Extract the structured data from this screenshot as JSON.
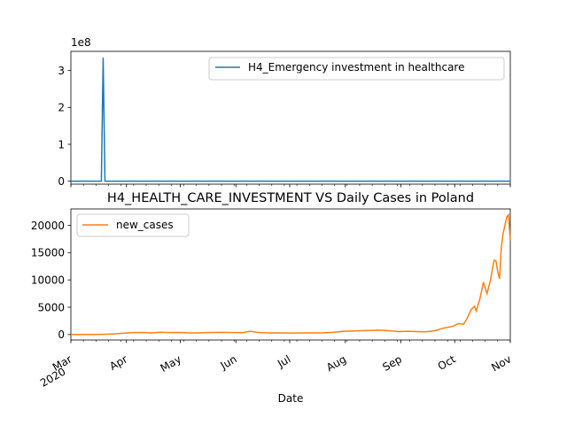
{
  "chart_data": [
    {
      "type": "line",
      "title": "",
      "xlabel": "",
      "ylabel": "",
      "ylim": [
        -8000000,
        352000000
      ],
      "y_multiplier_label": "1e8",
      "y_ticks": [
        0,
        100000000,
        200000000,
        300000000
      ],
      "y_tick_labels": [
        "0",
        "1",
        "2",
        "3"
      ],
      "legend_position": "upper right",
      "series": [
        {
          "name": "H4_Emergency investment in healthcare",
          "color": "#1f77b4",
          "points": [
            [
              "2020-03-01",
              0
            ],
            [
              "2020-03-18",
              0
            ],
            [
              "2020-03-19",
              335000000
            ],
            [
              "2020-03-20",
              0
            ],
            [
              "2020-11-01",
              0
            ]
          ]
        }
      ]
    },
    {
      "type": "line",
      "title": "H4_HEALTH_CARE_INVESTMENT VS Daily Cases in Poland",
      "xlabel": "Date",
      "ylabel": "",
      "xlim": [
        "2020-03-01",
        "2020-11-01"
      ],
      "ylim": [
        -1000,
        23000
      ],
      "y_ticks": [
        0,
        5000,
        10000,
        15000,
        20000
      ],
      "y_tick_labels": [
        "0",
        "5000",
        "10000",
        "15000",
        "20000"
      ],
      "x_ticks": [
        "2020-03-01",
        "2020-04-01",
        "2020-05-01",
        "2020-06-01",
        "2020-07-01",
        "2020-08-01",
        "2020-09-01",
        "2020-10-01",
        "2020-11-01"
      ],
      "x_tick_labels": [
        "Mar\n2020",
        "Apr",
        "May",
        "Jun",
        "Jul",
        "Aug",
        "Sep",
        "Oct",
        "Nov"
      ],
      "legend_position": "upper left",
      "grid": false,
      "series": [
        {
          "name": "new_cases",
          "color": "#ff7f0e",
          "points": [
            [
              "2020-03-01",
              0
            ],
            [
              "2020-03-10",
              5
            ],
            [
              "2020-03-15",
              20
            ],
            [
              "2020-03-20",
              50
            ],
            [
              "2020-03-25",
              120
            ],
            [
              "2020-03-31",
              250
            ],
            [
              "2020-04-05",
              350
            ],
            [
              "2020-04-10",
              380
            ],
            [
              "2020-04-15",
              300
            ],
            [
              "2020-04-20",
              420
            ],
            [
              "2020-04-25",
              350
            ],
            [
              "2020-04-30",
              380
            ],
            [
              "2020-05-05",
              320
            ],
            [
              "2020-05-10",
              300
            ],
            [
              "2020-05-15",
              350
            ],
            [
              "2020-05-20",
              380
            ],
            [
              "2020-05-25",
              400
            ],
            [
              "2020-05-31",
              350
            ],
            [
              "2020-06-05",
              360
            ],
            [
              "2020-06-09",
              600
            ],
            [
              "2020-06-14",
              350
            ],
            [
              "2020-06-20",
              300
            ],
            [
              "2020-06-25",
              300
            ],
            [
              "2020-07-01",
              280
            ],
            [
              "2020-07-10",
              300
            ],
            [
              "2020-07-15",
              290
            ],
            [
              "2020-07-20",
              320
            ],
            [
              "2020-07-25",
              400
            ],
            [
              "2020-07-31",
              600
            ],
            [
              "2020-08-05",
              650
            ],
            [
              "2020-08-10",
              700
            ],
            [
              "2020-08-15",
              750
            ],
            [
              "2020-08-20",
              800
            ],
            [
              "2020-08-25",
              700
            ],
            [
              "2020-08-31",
              550
            ],
            [
              "2020-09-05",
              600
            ],
            [
              "2020-09-10",
              550
            ],
            [
              "2020-09-15",
              500
            ],
            [
              "2020-09-20",
              700
            ],
            [
              "2020-09-25",
              1200
            ],
            [
              "2020-09-30",
              1500
            ],
            [
              "2020-10-03",
              2000
            ],
            [
              "2020-10-06",
              1900
            ],
            [
              "2020-10-08",
              3000
            ],
            [
              "2020-10-10",
              4500
            ],
            [
              "2020-10-12",
              5200
            ],
            [
              "2020-10-13",
              4300
            ],
            [
              "2020-10-15",
              6500
            ],
            [
              "2020-10-16",
              8000
            ],
            [
              "2020-10-17",
              9600
            ],
            [
              "2020-10-19",
              7500
            ],
            [
              "2020-10-21",
              10000
            ],
            [
              "2020-10-22",
              12000
            ],
            [
              "2020-10-23",
              13600
            ],
            [
              "2020-10-24",
              13500
            ],
            [
              "2020-10-25",
              11500
            ],
            [
              "2020-10-26",
              10200
            ],
            [
              "2020-10-27",
              16000
            ],
            [
              "2020-10-28",
              18500
            ],
            [
              "2020-10-29",
              20000
            ],
            [
              "2020-10-30",
              21500
            ],
            [
              "2020-10-31",
              21900
            ],
            [
              "2020-11-01",
              17200
            ]
          ]
        }
      ]
    }
  ]
}
